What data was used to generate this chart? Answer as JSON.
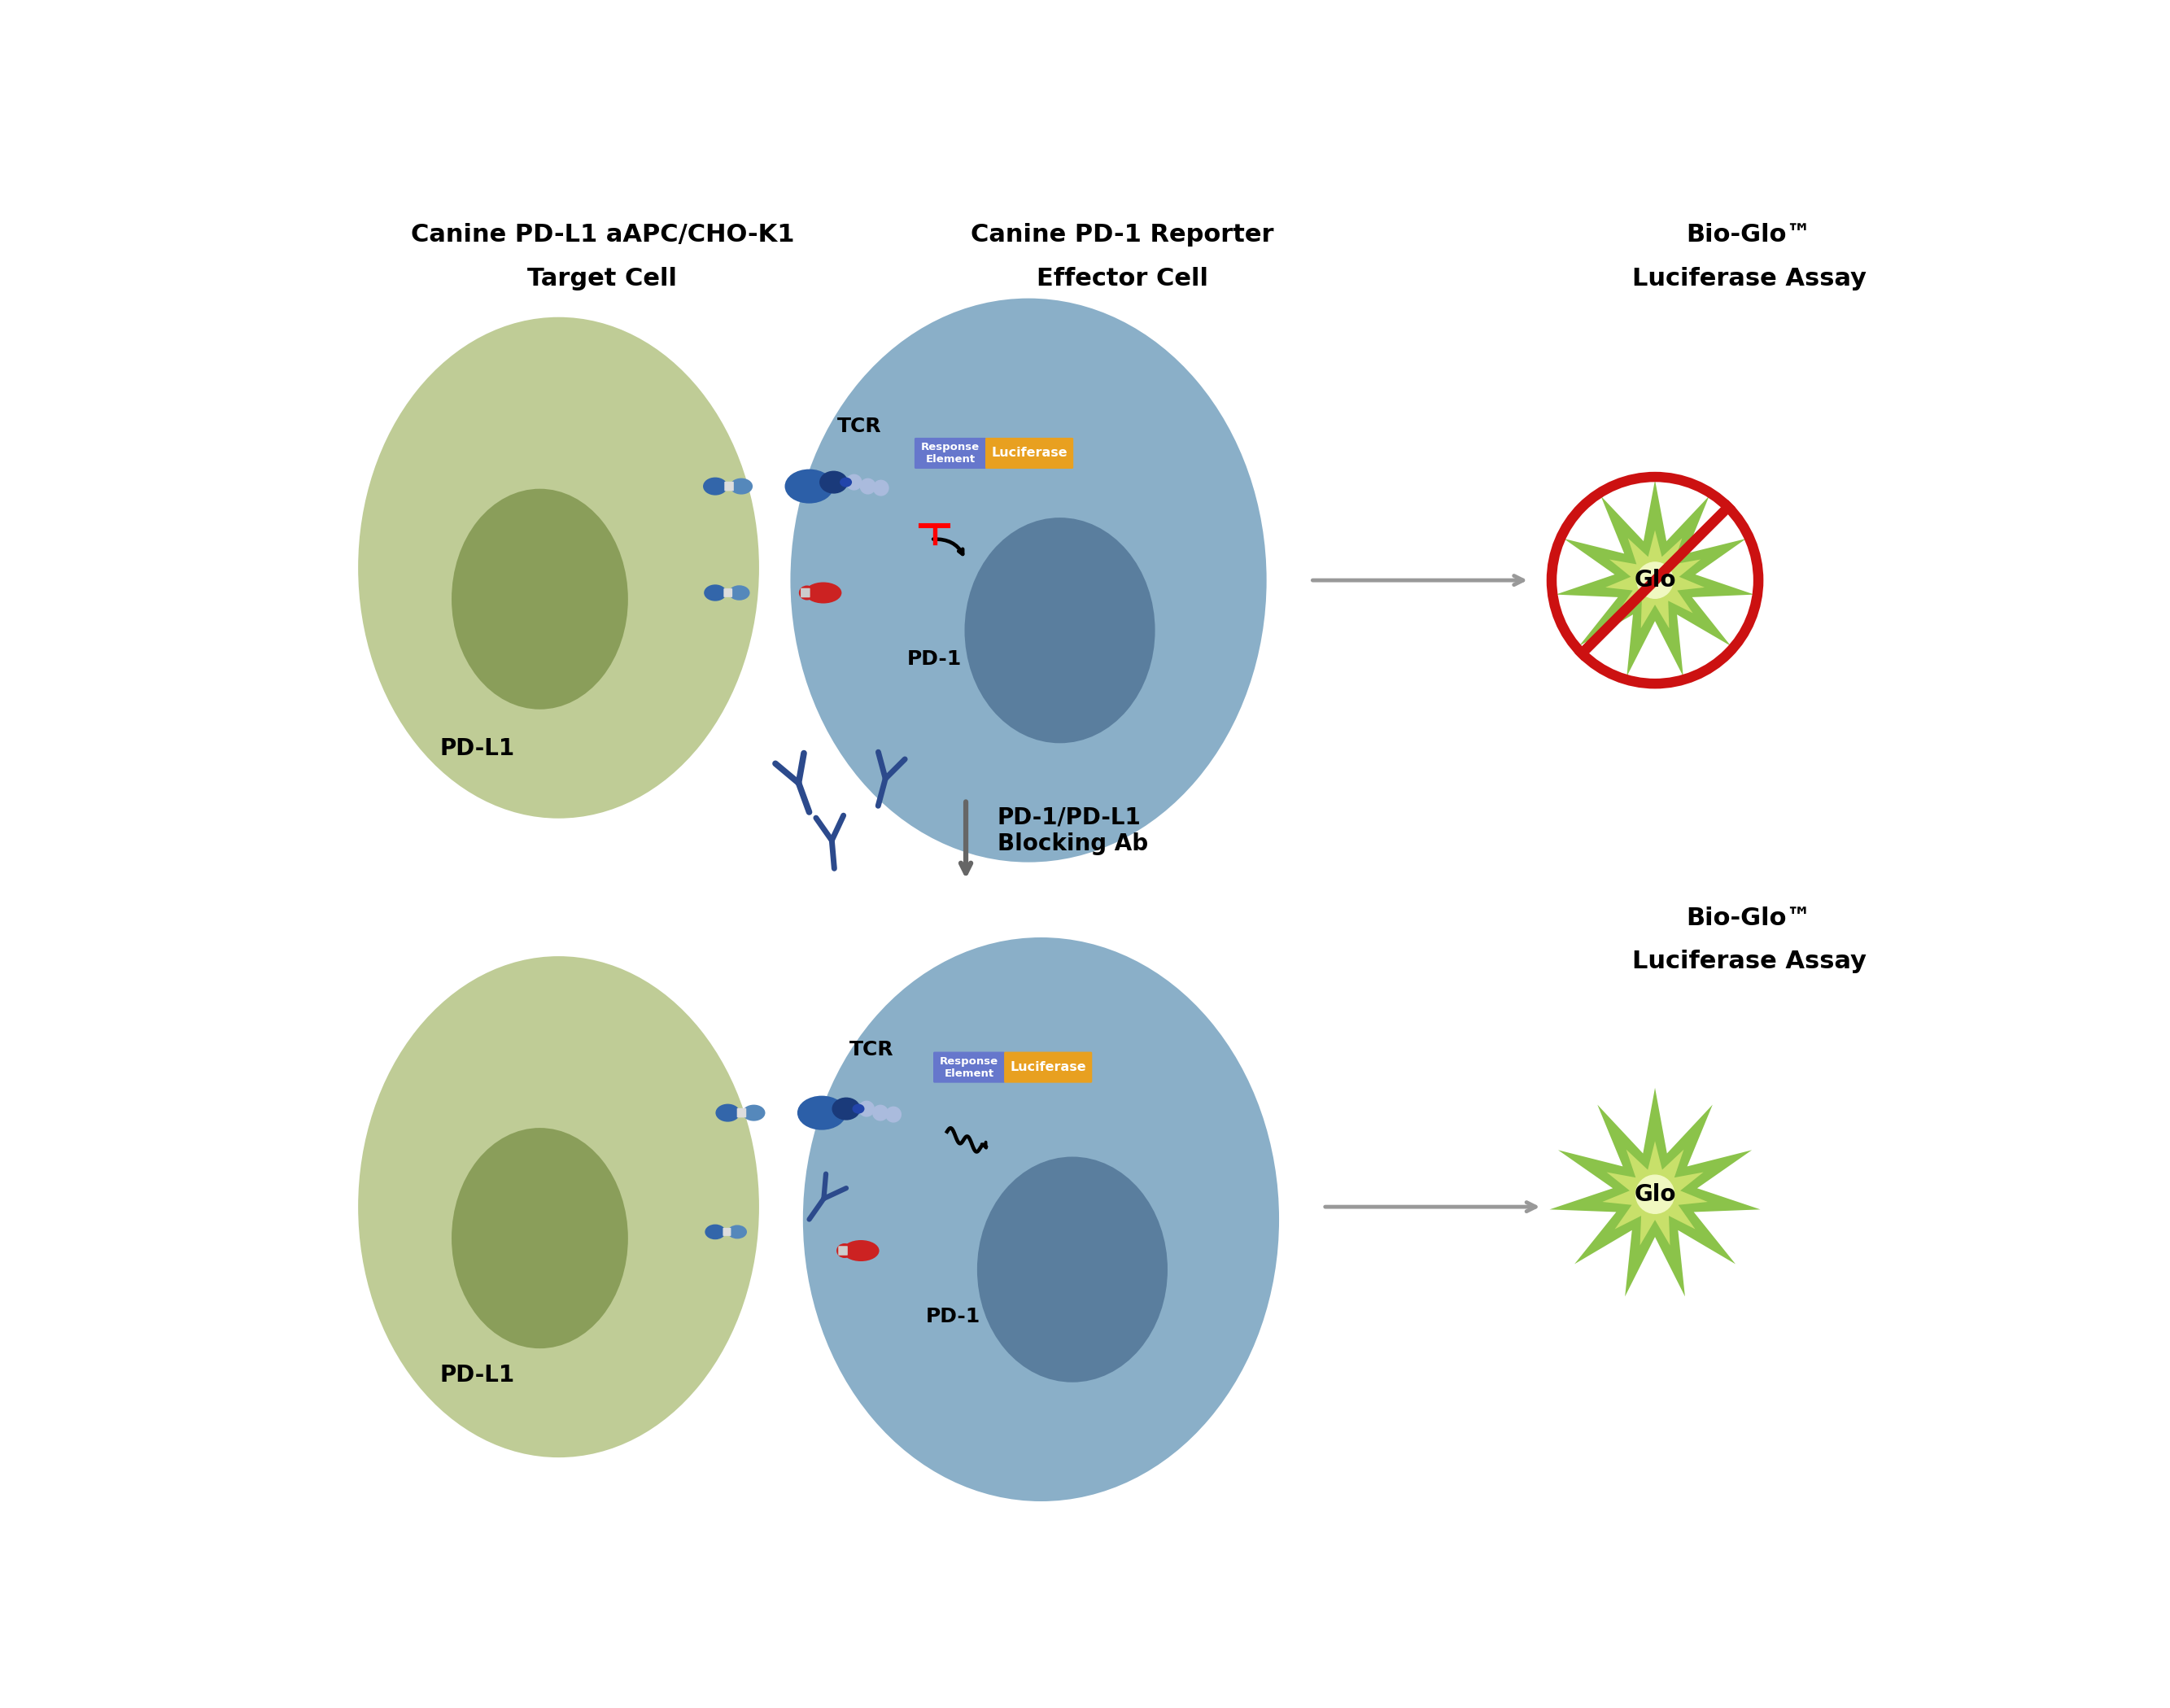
{
  "bg_color": "#ffffff",
  "title1": "Canine PD-L1 aAPC/CHO-K1",
  "title2": "Target Cell",
  "title3": "Canine PD-1 Reporter",
  "title4": "Effector Cell",
  "bioglo_label": "Bio-Glo™",
  "luciferase_assay_label": "Luciferase Assay",
  "blocking_label": "PD-1/PD-L1\nBlocking Ab",
  "glo_label": "Glo",
  "tcr_label": "TCR",
  "pd1_label": "PD-1",
  "pdl1_label": "PD-L1",
  "response_element_label": "Response\nElement",
  "luciferase_label": "Luciferase",
  "cell1_color": "#bfcc96",
  "cell1_nucleus_color": "#8a9e5a",
  "cell2_color": "#8aafc8",
  "cell2_nucleus_color": "#5a7e9e",
  "star_color_outer": "#8bc34a",
  "star_color_inner": "#c8e06a",
  "star_center_color": "#e8f5c0",
  "red_color": "#cc1111",
  "antibody_color": "#2c4a8c",
  "pd1_color": "#cc2222",
  "pdl1_color_top": "#5588bb",
  "pdl1_color_bot": "#3366aa",
  "pdl1_connector_color": "#99bbdd",
  "tcr_body_color": "#2c5fa8",
  "tcr_light_color": "#aabbdd",
  "response_element_bg": "#6677cc",
  "luciferase_bg": "#e8a020",
  "arrow_color": "#999999",
  "text_color": "#000000"
}
